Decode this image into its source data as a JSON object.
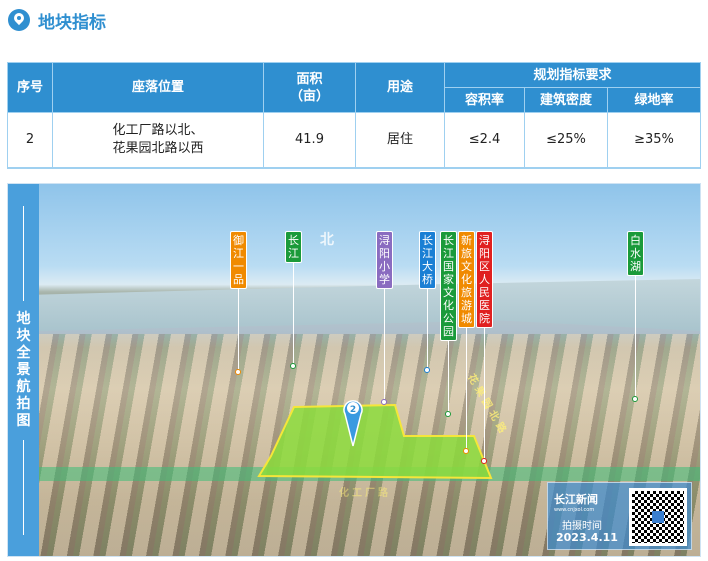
{
  "title": "地块指标",
  "table": {
    "headers": {
      "index": "序号",
      "location": "座落位置",
      "area": "面积\n（亩）",
      "area_l1": "面积",
      "area_l2": "（亩）",
      "use": "用途",
      "planning": "规划指标要求",
      "far": "容积率",
      "density": "建筑密度",
      "green": "绿地率"
    },
    "rows": [
      {
        "index": "2",
        "location_l1": "化工厂路以北、",
        "location_l2": "花果园北路以西",
        "area": "41.9",
        "use": "居住",
        "far": "≤2.4",
        "density": "≤25%",
        "green": "≥35%"
      }
    ]
  },
  "panel": {
    "side_title": "地块全景航拍图",
    "north": "北",
    "plot_number": "2",
    "labels": [
      {
        "text": "御江一品",
        "color": "#f08a00"
      },
      {
        "text": "长江",
        "color": "#1a9a3a"
      },
      {
        "text": "浔阳小学",
        "color": "#8a6cc0"
      },
      {
        "text": "长江大桥",
        "color": "#1a7fd4"
      },
      {
        "text": "长江国家文化公园",
        "color": "#1a9a3a"
      },
      {
        "text": "新旅文化旅游城",
        "color": "#f08a00"
      },
      {
        "text": "浔阳区人民医院",
        "color": "#e02020"
      },
      {
        "text": "白水湖",
        "color": "#1a9a3a"
      }
    ],
    "roads": {
      "east": "花果园北路",
      "south": "化工厂路"
    },
    "stamp": {
      "logo": "长江新闻",
      "logo_url": "www.cnjxol.com",
      "time_label": "拍摄时间",
      "date": "2023.4.11"
    },
    "plot_color": "#f5e63a"
  }
}
